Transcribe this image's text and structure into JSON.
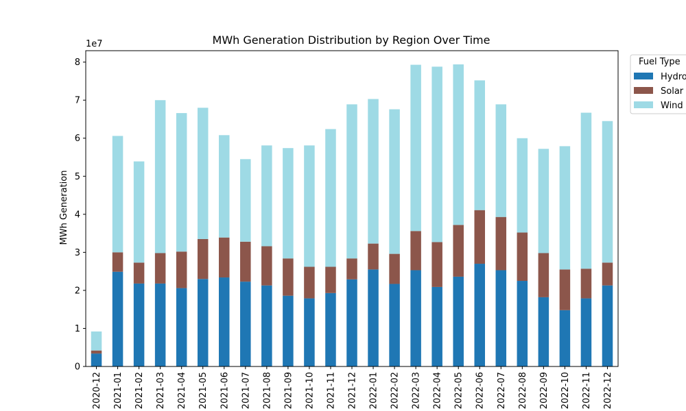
{
  "chart_data": {
    "type": "bar",
    "stacked": true,
    "title": "MWh Generation Distribution by Region Over Time",
    "xlabel": "",
    "ylabel": "MWh Generation",
    "y_multiplier_label": "1e7",
    "ylim": [
      0,
      83000000
    ],
    "yticks": [
      0,
      1,
      2,
      3,
      4,
      5,
      6,
      7,
      8
    ],
    "grid": false,
    "legend": {
      "title": "Fuel Type",
      "placement": "upper-right-outside"
    },
    "categories": [
      "2020-12",
      "2021-01",
      "2021-02",
      "2021-03",
      "2021-04",
      "2021-05",
      "2021-06",
      "2021-07",
      "2021-08",
      "2021-09",
      "2021-10",
      "2021-11",
      "2021-12",
      "2022-01",
      "2022-02",
      "2022-03",
      "2022-04",
      "2022-05",
      "2022-06",
      "2022-07",
      "2022-08",
      "2022-09",
      "2022-10",
      "2022-11",
      "2022-12"
    ],
    "series": [
      {
        "name": "Hydro",
        "color": "#1f77b4",
        "values": [
          3400000,
          24900000,
          21800000,
          21800000,
          20600000,
          23000000,
          23400000,
          22300000,
          21300000,
          18600000,
          17900000,
          19300000,
          22900000,
          25500000,
          21700000,
          25300000,
          20900000,
          23600000,
          27000000,
          25300000,
          22500000,
          18200000,
          14800000,
          17900000,
          21300000
        ]
      },
      {
        "name": "Solar",
        "color": "#8c564b",
        "values": [
          800000,
          5100000,
          5500000,
          8000000,
          9600000,
          10500000,
          10500000,
          10500000,
          10300000,
          9800000,
          8300000,
          6900000,
          5500000,
          6800000,
          7900000,
          10300000,
          11800000,
          13600000,
          14100000,
          14000000,
          12700000,
          11600000,
          10700000,
          7800000,
          6000000
        ]
      },
      {
        "name": "Wind",
        "color": "#9edae5",
        "values": [
          5000000,
          30600000,
          26600000,
          40200000,
          36400000,
          34500000,
          26900000,
          21700000,
          26500000,
          29000000,
          31900000,
          36200000,
          40500000,
          38000000,
          38000000,
          43700000,
          46100000,
          42200000,
          34100000,
          29600000,
          24800000,
          27400000,
          32400000,
          41000000,
          37200000
        ]
      }
    ]
  }
}
